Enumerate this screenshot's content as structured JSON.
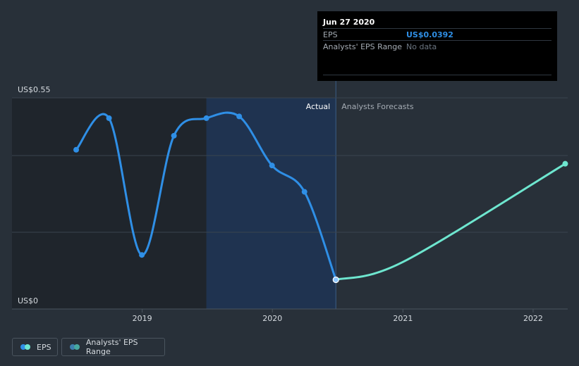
{
  "chart_data": {
    "type": "line",
    "y_tick_labels": [
      "US$0.55",
      "US$0"
    ],
    "ylim": [
      0,
      0.55
    ],
    "x_tick_labels": [
      "2019",
      "2020",
      "2021",
      "2022"
    ],
    "region_labels": {
      "actual": "Actual",
      "forecast": "Analysts Forecasts"
    },
    "series": [
      {
        "name": "EPS",
        "color": "#2f8fe6",
        "points": [
          {
            "x": "2018-06-30",
            "y": 0.41
          },
          {
            "x": "2018-09-30",
            "y": 0.5
          },
          {
            "x": "2018-12-31",
            "y": 0.11
          },
          {
            "x": "2019-03-31",
            "y": 0.45
          },
          {
            "x": "2019-06-30",
            "y": 0.5
          },
          {
            "x": "2019-09-30",
            "y": 0.505
          },
          {
            "x": "2019-12-31",
            "y": 0.365
          },
          {
            "x": "2020-03-31",
            "y": 0.29
          },
          {
            "x": "2020-06-27",
            "y": 0.0392
          }
        ]
      },
      {
        "name": "Analysts' EPS forecast",
        "color": "#6ee6cf",
        "points": [
          {
            "x": "2020-06-27",
            "y": 0.0392
          },
          {
            "x": "2021-01-01",
            "y": 0.09
          },
          {
            "x": "2022-04-01",
            "y": 0.37
          }
        ]
      }
    ],
    "grid": true,
    "legend_position": "bottom-left"
  },
  "tooltip": {
    "date": "Jun 27 2020",
    "rows": [
      {
        "label": "EPS",
        "value": "US$0.0392",
        "value_color": "#2f8fe6"
      },
      {
        "label": "Analysts' EPS Range",
        "value": "No data",
        "value_color": "#6b7580"
      }
    ]
  },
  "legend": {
    "items": [
      {
        "label": "EPS",
        "colors": [
          "#2f8fe6",
          "#6ee6cf"
        ]
      },
      {
        "label": "Analysts' EPS Range",
        "colors": [
          "#3d7fae",
          "#46a8a0"
        ]
      }
    ]
  },
  "colors": {
    "background": "#283039",
    "past_shade": "#1f252c",
    "actual_shade": "#1f3350",
    "grid": "#3a444e",
    "tick_text": "#d6dbe0"
  }
}
